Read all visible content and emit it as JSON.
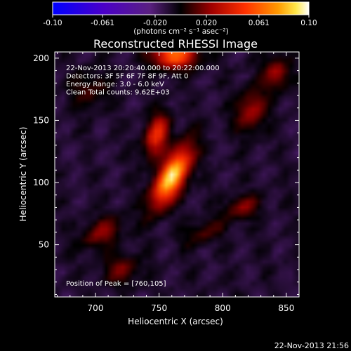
{
  "chart_data": {
    "type": "heatmap",
    "title": "Reconstructed RHESSI Image",
    "xlabel": "Heliocentric X (arcsec)",
    "ylabel": "Heliocentric Y (arcsec)",
    "xlim": [
      668,
      860
    ],
    "ylim": [
      8,
      205
    ],
    "x_ticks": [
      700,
      750,
      800,
      850
    ],
    "y_ticks": [
      50,
      100,
      150,
      200
    ],
    "colorbar": {
      "label": "(photons cm⁻² s⁻¹ asec⁻²)",
      "range": [
        -0.1,
        0.1
      ],
      "ticks": [
        "-0.10",
        "-0.061",
        "-0.020",
        "0.020",
        "0.061",
        "0.10"
      ],
      "colormap": "blue-purple-black-red-orange-yellow-white"
    },
    "annotations": [
      "22-Nov-2013 20:20:40.000 to 20:22:00.000",
      "Detectors: 3F 5F 6F 7F 8F 9F, Att 0",
      "Energy Range: 3.0 - 6.0 keV",
      "Clean     Total counts: 9.62E+03"
    ],
    "peak_label": "Position of Peak = [760,105]",
    "peak": {
      "x": 760,
      "y": 105
    },
    "sources": [
      {
        "x": 760,
        "y": 105,
        "sx": 7,
        "sy": 18,
        "angle": 28,
        "amp": 1.0
      },
      {
        "x": 748,
        "y": 138,
        "sx": 6,
        "sy": 12,
        "angle": 15,
        "amp": 0.55
      },
      {
        "x": 762,
        "y": 202,
        "sx": 12,
        "sy": 7,
        "angle": 0,
        "amp": 0.7
      },
      {
        "x": 822,
        "y": 158,
        "sx": 8,
        "sy": 12,
        "angle": 10,
        "amp": 0.35
      },
      {
        "x": 842,
        "y": 188,
        "sx": 7,
        "sy": 9,
        "angle": 0,
        "amp": 0.35
      },
      {
        "x": 815,
        "y": 80,
        "sx": 10,
        "sy": 6,
        "angle": -20,
        "amp": 0.3
      },
      {
        "x": 705,
        "y": 60,
        "sx": 12,
        "sy": 7,
        "angle": -30,
        "amp": 0.3
      },
      {
        "x": 720,
        "y": 30,
        "sx": 10,
        "sy": 8,
        "angle": 0,
        "amp": 0.25
      },
      {
        "x": 785,
        "y": 60,
        "sx": 12,
        "sy": 6,
        "angle": -20,
        "amp": 0.2
      },
      {
        "x": 695,
        "y": 175,
        "sx": 10,
        "sy": 10,
        "angle": 0,
        "amp": 0.18
      }
    ]
  },
  "footer_timestamp": "22-Nov-2013 21:56"
}
